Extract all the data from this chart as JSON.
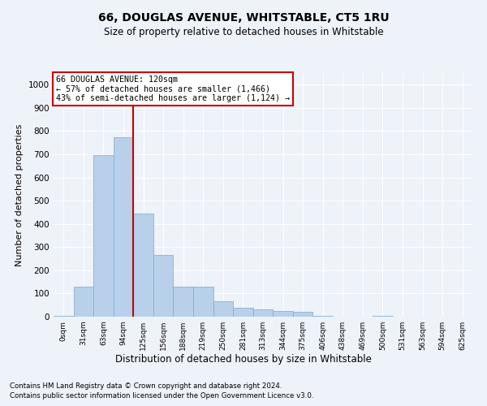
{
  "title": "66, DOUGLAS AVENUE, WHITSTABLE, CT5 1RU",
  "subtitle": "Size of property relative to detached houses in Whitstable",
  "xlabel": "Distribution of detached houses by size in Whitstable",
  "ylabel": "Number of detached properties",
  "bar_labels": [
    "0sqm",
    "31sqm",
    "63sqm",
    "94sqm",
    "125sqm",
    "156sqm",
    "188sqm",
    "219sqm",
    "250sqm",
    "281sqm",
    "313sqm",
    "344sqm",
    "375sqm",
    "406sqm",
    "438sqm",
    "469sqm",
    "500sqm",
    "531sqm",
    "563sqm",
    "594sqm",
    "625sqm"
  ],
  "bar_values": [
    5,
    130,
    695,
    775,
    445,
    265,
    130,
    130,
    65,
    40,
    30,
    25,
    20,
    5,
    0,
    0,
    5,
    0,
    0,
    0,
    0
  ],
  "bar_color": "#b8d0ea",
  "bar_edge_color": "#7aaad0",
  "vline_x_index": 4,
  "vline_color": "#cc0000",
  "annotation_text": "66 DOUGLAS AVENUE: 120sqm\n← 57% of detached houses are smaller (1,466)\n43% of semi-detached houses are larger (1,124) →",
  "annotation_box_color": "#ffffff",
  "annotation_box_edge": "#cc0000",
  "ylim": [
    0,
    1050
  ],
  "yticks": [
    0,
    100,
    200,
    300,
    400,
    500,
    600,
    700,
    800,
    900,
    1000
  ],
  "footer_line1": "Contains HM Land Registry data © Crown copyright and database right 2024.",
  "footer_line2": "Contains public sector information licensed under the Open Government Licence v3.0.",
  "bg_color": "#eef2f9",
  "plot_bg_color": "#eef2f9",
  "title_fontsize": 10,
  "subtitle_fontsize": 8.5,
  "ylabel_fontsize": 8,
  "xlabel_fontsize": 8.5
}
